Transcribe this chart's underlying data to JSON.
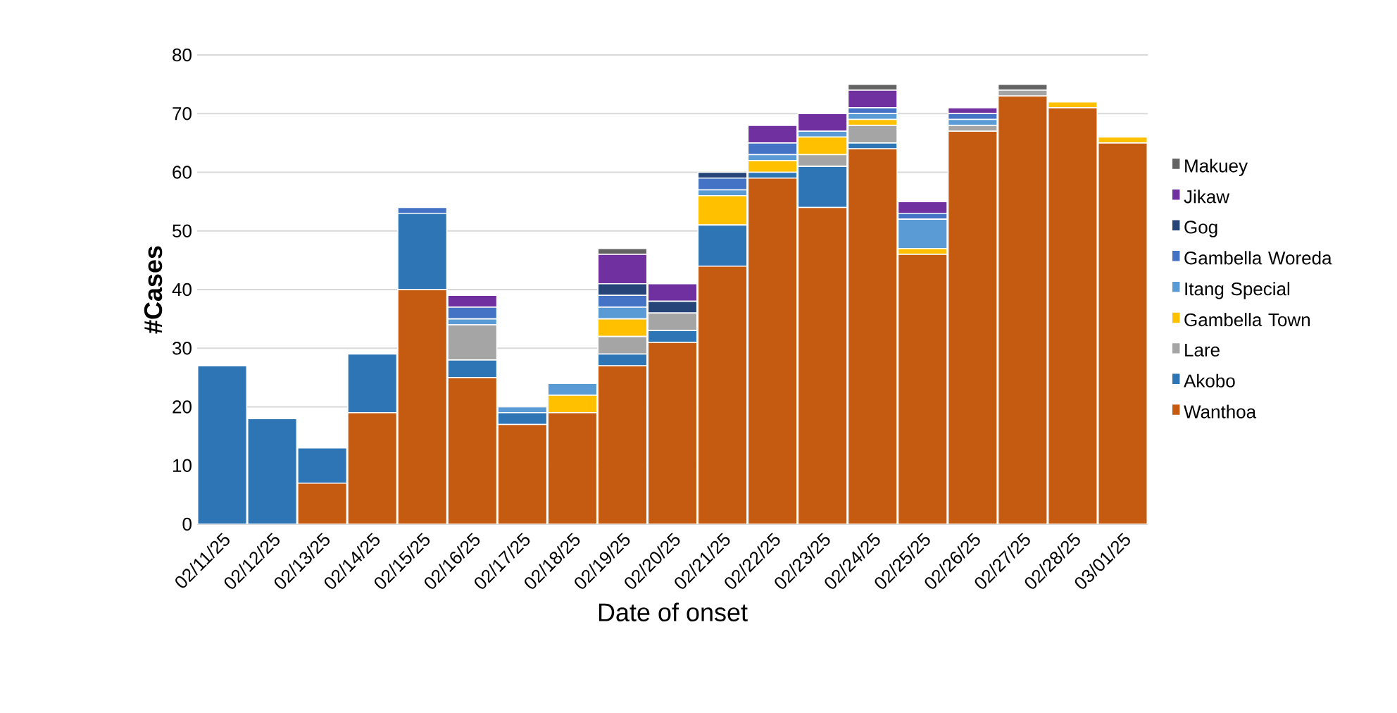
{
  "chart_data": {
    "type": "bar",
    "stacked": true,
    "xlabel": "Date of onset",
    "ylabel": "#Cases",
    "categories": [
      "02/11/25",
      "02/12/25",
      "02/13/25",
      "02/14/25",
      "02/15/25",
      "02/16/25",
      "02/17/25",
      "02/18/25",
      "02/19/25",
      "02/20/25",
      "02/21/25",
      "02/22/25",
      "02/23/25",
      "02/24/25",
      "02/25/25",
      "02/26/25",
      "02/27/25",
      "02/28/25",
      "03/01/25"
    ],
    "series": [
      {
        "name": "Wanthoa",
        "color": "#c55a11",
        "values": [
          0,
          0,
          7,
          19,
          40,
          25,
          17,
          19,
          27,
          31,
          44,
          59,
          54,
          64,
          46,
          67,
          73,
          71,
          65
        ]
      },
      {
        "name": "Akobo",
        "color": "#2e75b6",
        "values": [
          27,
          18,
          6,
          10,
          13,
          3,
          2,
          0,
          2,
          2,
          7,
          1,
          7,
          1,
          0,
          0,
          0,
          0,
          0
        ]
      },
      {
        "name": "Lare",
        "color": "#a5a5a5",
        "values": [
          0,
          0,
          0,
          0,
          0,
          6,
          0,
          0,
          3,
          3,
          0,
          0,
          2,
          3,
          0,
          1,
          1,
          0,
          0
        ]
      },
      {
        "name": "Gambella Town",
        "color": "#ffc000",
        "values": [
          0,
          0,
          0,
          0,
          0,
          0,
          0,
          3,
          3,
          0,
          5,
          2,
          3,
          1,
          1,
          0,
          0,
          1,
          1
        ]
      },
      {
        "name": "Itang Special",
        "color": "#5b9bd5",
        "values": [
          0,
          0,
          0,
          0,
          0,
          1,
          1,
          2,
          2,
          0,
          1,
          1,
          1,
          1,
          5,
          1,
          0,
          0,
          0
        ]
      },
      {
        "name": "Gambella Woreda",
        "color": "#4472c4",
        "values": [
          0,
          0,
          0,
          0,
          1,
          2,
          0,
          0,
          2,
          0,
          2,
          2,
          0,
          1,
          1,
          1,
          0,
          0,
          0
        ]
      },
      {
        "name": "Gog",
        "color": "#264478",
        "values": [
          0,
          0,
          0,
          0,
          0,
          0,
          0,
          0,
          2,
          2,
          1,
          0,
          0,
          0,
          0,
          0,
          0,
          0,
          0
        ]
      },
      {
        "name": "Jikaw",
        "color": "#7030a0",
        "values": [
          0,
          0,
          0,
          0,
          0,
          2,
          0,
          0,
          5,
          3,
          0,
          3,
          3,
          3,
          2,
          1,
          0,
          0,
          0
        ]
      },
      {
        "name": "Makuey",
        "color": "#636363",
        "values": [
          0,
          0,
          0,
          0,
          0,
          0,
          0,
          0,
          1,
          0,
          0,
          0,
          0,
          1,
          0,
          0,
          1,
          0,
          0
        ]
      }
    ],
    "ylim": [
      0,
      80
    ],
    "yticks": [
      0,
      10,
      20,
      30,
      40,
      50,
      60,
      70,
      80
    ],
    "grid": "y",
    "legend": "right"
  }
}
